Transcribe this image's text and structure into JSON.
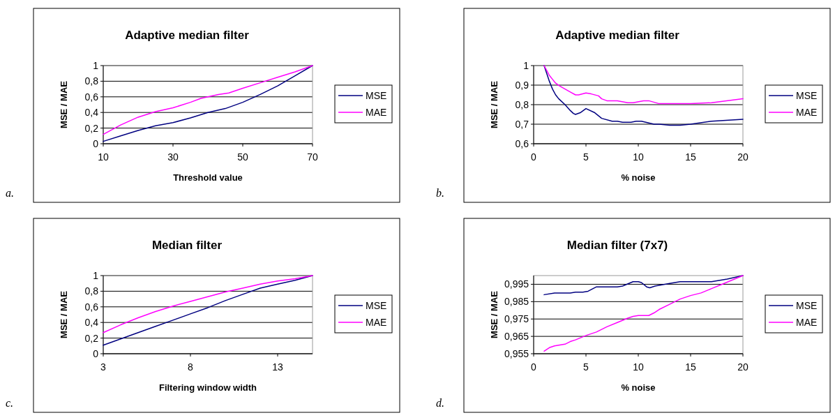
{
  "chart_data": [
    {
      "type": "line",
      "title": "Adaptive median filter",
      "xlabel": "Threshold value",
      "ylabel": "MSE / MAE",
      "annotations": [
        "a."
      ],
      "xlim": [
        10,
        70
      ],
      "xticks": [
        10,
        30,
        50,
        70
      ],
      "ylim": [
        0,
        1
      ],
      "yticks": [
        {
          "value": 0,
          "label": "0"
        },
        {
          "value": 0.2,
          "label": "0,2"
        },
        {
          "value": 0.4,
          "label": "0,4"
        },
        {
          "value": 0.6,
          "label": "0,6"
        },
        {
          "value": 0.8,
          "label": "0,8"
        },
        {
          "value": 1,
          "label": "1"
        }
      ],
      "grid": "y",
      "legend": "right",
      "marker": "none",
      "line_style": "solid",
      "series": [
        {
          "name": "MSE",
          "color": "#000080",
          "x": [
            10,
            15,
            20,
            25,
            30,
            35,
            40,
            45,
            50,
            55,
            60,
            65,
            70
          ],
          "values": [
            0.03,
            0.1,
            0.17,
            0.23,
            0.27,
            0.33,
            0.4,
            0.45,
            0.53,
            0.63,
            0.74,
            0.87,
            1
          ]
        },
        {
          "name": "MAE",
          "color": "#ff00ff",
          "x": [
            10,
            15,
            20,
            25,
            30,
            35,
            38,
            40,
            43,
            46,
            50,
            55,
            60,
            65,
            70
          ],
          "values": [
            0.12,
            0.24,
            0.34,
            0.41,
            0.46,
            0.53,
            0.58,
            0.6,
            0.63,
            0.65,
            0.71,
            0.78,
            0.85,
            0.92,
            1
          ]
        }
      ]
    },
    {
      "type": "line",
      "title": "Adaptive median filter",
      "xlabel": "% noise",
      "ylabel": "MSE / MAE",
      "annotations": [
        "b."
      ],
      "xlim": [
        0,
        20
      ],
      "xticks": [
        0,
        5,
        10,
        15,
        20
      ],
      "ylim": [
        0.6,
        1
      ],
      "yticks": [
        {
          "value": 0.6,
          "label": "0,6"
        },
        {
          "value": 0.7,
          "label": "0,7"
        },
        {
          "value": 0.8,
          "label": "0,8"
        },
        {
          "value": 0.9,
          "label": "0,9"
        },
        {
          "value": 1,
          "label": "1"
        }
      ],
      "grid": "y",
      "legend": "right",
      "marker": "none",
      "line_style": "solid",
      "series": [
        {
          "name": "MSE",
          "color": "#000080",
          "x": [
            1,
            1.5,
            1.8,
            2.1,
            2.4,
            3,
            3.5,
            3.8,
            4,
            4.5,
            5,
            5.8,
            6.5,
            7.5,
            8,
            8.5,
            9.3,
            9.8,
            10.3,
            11.5,
            12,
            13,
            14,
            15,
            17,
            20
          ],
          "values": [
            1,
            0.92,
            0.88,
            0.85,
            0.83,
            0.8,
            0.77,
            0.755,
            0.75,
            0.76,
            0.78,
            0.76,
            0.73,
            0.715,
            0.715,
            0.71,
            0.71,
            0.715,
            0.715,
            0.7,
            0.7,
            0.695,
            0.695,
            0.7,
            0.715,
            0.725
          ]
        },
        {
          "name": "MAE",
          "color": "#ff00ff",
          "x": [
            1,
            1.5,
            1.8,
            2.1,
            2.5,
            3,
            3.5,
            4,
            4.3,
            5,
            5.5,
            6.2,
            6.5,
            7,
            8,
            9,
            9.5,
            10.5,
            11,
            12,
            15,
            17,
            20
          ],
          "values": [
            1,
            0.95,
            0.93,
            0.91,
            0.895,
            0.88,
            0.865,
            0.85,
            0.85,
            0.86,
            0.855,
            0.845,
            0.83,
            0.82,
            0.82,
            0.81,
            0.81,
            0.82,
            0.82,
            0.805,
            0.805,
            0.81,
            0.83
          ]
        }
      ]
    },
    {
      "type": "line",
      "title": "Median filter",
      "xlabel": "Filtering window width",
      "ylabel": "MSE / MAE",
      "annotations": [
        "c."
      ],
      "xlim": [
        3,
        15
      ],
      "xticks": [
        3,
        8,
        13
      ],
      "ylim": [
        0,
        1
      ],
      "yticks": [
        {
          "value": 0,
          "label": "0"
        },
        {
          "value": 0.2,
          "label": "0,2"
        },
        {
          "value": 0.4,
          "label": "0,4"
        },
        {
          "value": 0.6,
          "label": "0,6"
        },
        {
          "value": 0.8,
          "label": "0,8"
        },
        {
          "value": 1,
          "label": "1"
        }
      ],
      "grid": "y",
      "legend": "right",
      "marker": "none",
      "line_style": "solid",
      "series": [
        {
          "name": "MSE",
          "color": "#000080",
          "x": [
            3,
            4,
            5,
            6,
            7,
            8,
            9,
            10,
            11,
            12,
            13,
            14,
            15
          ],
          "values": [
            0.11,
            0.19,
            0.27,
            0.35,
            0.43,
            0.51,
            0.59,
            0.68,
            0.76,
            0.84,
            0.89,
            0.94,
            1
          ]
        },
        {
          "name": "MAE",
          "color": "#ff00ff",
          "x": [
            3,
            4,
            5,
            6,
            7,
            8,
            9,
            10,
            11,
            12,
            13,
            14,
            15
          ],
          "values": [
            0.27,
            0.37,
            0.46,
            0.54,
            0.61,
            0.67,
            0.73,
            0.79,
            0.84,
            0.89,
            0.93,
            0.96,
            1
          ]
        }
      ]
    },
    {
      "type": "line",
      "title": "Median filter (7x7)",
      "xlabel": "% noise",
      "ylabel": "MSE / MAE",
      "annotations": [
        "d."
      ],
      "xlim": [
        0,
        20
      ],
      "xticks": [
        0,
        5,
        10,
        15,
        20
      ],
      "ylim": [
        0.955,
        1
      ],
      "yticks": [
        {
          "value": 0.955,
          "label": "0,955"
        },
        {
          "value": 0.965,
          "label": "0,965"
        },
        {
          "value": 0.975,
          "label": "0,975"
        },
        {
          "value": 0.985,
          "label": "0,985"
        },
        {
          "value": 0.995,
          "label": "0,995"
        }
      ],
      "grid": "y",
      "legend": "right",
      "marker": "none",
      "line_style": "solid",
      "series": [
        {
          "name": "MSE",
          "color": "#000080",
          "x": [
            1,
            2,
            3.5,
            4,
            4.7,
            5.2,
            6,
            8,
            8.5,
            9.5,
            10,
            10.3,
            10.8,
            11.1,
            11.6,
            13,
            14,
            17,
            18.5,
            20
          ],
          "values": [
            0.989,
            0.99,
            0.99,
            0.9905,
            0.9905,
            0.991,
            0.9935,
            0.9935,
            0.994,
            0.9965,
            0.9965,
            0.996,
            0.9935,
            0.993,
            0.994,
            0.9955,
            0.9965,
            0.9965,
            0.998,
            1
          ]
        },
        {
          "name": "MAE",
          "color": "#ff00ff",
          "x": [
            1,
            1.5,
            2,
            3,
            3.5,
            4,
            5,
            6,
            7,
            8,
            9,
            9.5,
            10,
            11,
            11.5,
            12,
            13,
            14,
            15,
            16,
            17,
            18,
            19,
            20
          ],
          "values": [
            0.9565,
            0.9585,
            0.9595,
            0.9605,
            0.962,
            0.963,
            0.9655,
            0.9675,
            0.9705,
            0.973,
            0.9755,
            0.9765,
            0.977,
            0.977,
            0.9785,
            0.9805,
            0.9835,
            0.9865,
            0.9885,
            0.99,
            0.9925,
            0.995,
            0.9975,
            1
          ]
        }
      ]
    }
  ]
}
